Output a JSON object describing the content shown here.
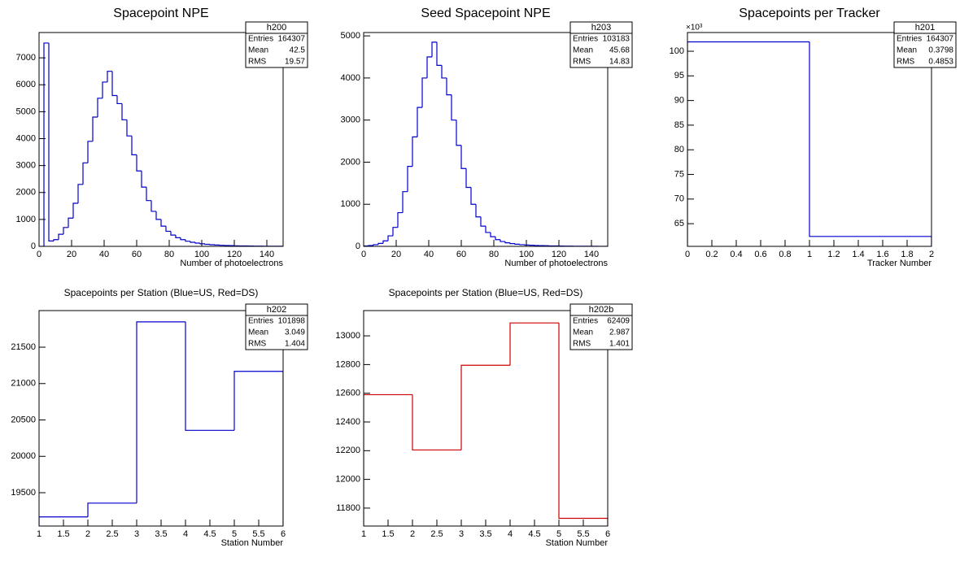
{
  "chart_data": [
    {
      "type": "histogram",
      "title": "Spacepoint NPE",
      "x_label": "Number of photoelectrons",
      "color": "#0000cc",
      "bins": [
        0,
        3,
        6,
        9,
        12,
        15,
        18,
        21,
        24,
        27,
        30,
        33,
        36,
        39,
        42,
        45,
        48,
        51,
        54,
        57,
        60,
        63,
        66,
        69,
        72,
        75,
        78,
        81,
        84,
        87,
        90,
        93,
        96,
        99,
        102,
        105,
        108,
        111,
        114,
        117,
        120,
        123,
        126,
        129,
        132,
        135,
        138,
        141,
        144,
        147,
        150
      ],
      "values": [
        0,
        7550,
        200,
        250,
        450,
        700,
        1050,
        1600,
        2300,
        3100,
        3900,
        4800,
        5500,
        6100,
        6500,
        5600,
        5300,
        4700,
        4100,
        3400,
        2800,
        2200,
        1700,
        1300,
        1000,
        750,
        560,
        420,
        320,
        250,
        190,
        150,
        120,
        95,
        75,
        60,
        50,
        40,
        32,
        26,
        21,
        17,
        14,
        11,
        9,
        7,
        6,
        5,
        4,
        3
      ],
      "xlim": [
        0,
        150
      ],
      "ylim": [
        0,
        7940
      ],
      "xticks": [
        0,
        20,
        40,
        60,
        80,
        100,
        120,
        140
      ],
      "yticks": [
        0,
        1000,
        2000,
        3000,
        4000,
        5000,
        6000,
        7000
      ],
      "stats": {
        "name": "h200",
        "rows": [
          {
            "label": "Entries",
            "value": 164307
          },
          {
            "label": "Mean",
            "value": 42.5
          },
          {
            "label": "RMS",
            "value": 19.57
          }
        ]
      }
    },
    {
      "type": "histogram",
      "title": "Seed Spacepoint NPE",
      "x_label": "Number of photoelectrons",
      "color": "#0000cc",
      "bins": [
        0,
        3,
        6,
        9,
        12,
        15,
        18,
        21,
        24,
        27,
        30,
        33,
        36,
        39,
        42,
        45,
        48,
        51,
        54,
        57,
        60,
        63,
        66,
        69,
        72,
        75,
        78,
        81,
        84,
        87,
        90,
        93,
        96,
        99,
        102,
        105,
        108,
        111,
        114,
        117,
        120,
        123,
        126,
        129,
        132,
        135,
        138,
        141,
        144,
        147,
        150
      ],
      "values": [
        10,
        20,
        40,
        70,
        130,
        250,
        450,
        800,
        1300,
        1900,
        2600,
        3300,
        4000,
        4500,
        4850,
        4300,
        4000,
        3600,
        3000,
        2400,
        1850,
        1400,
        1000,
        700,
        480,
        330,
        230,
        160,
        115,
        85,
        65,
        50,
        40,
        32,
        26,
        21,
        17,
        14,
        11,
        9,
        7,
        6,
        5,
        4,
        3,
        3,
        2,
        2,
        1,
        1
      ],
      "xlim": [
        0,
        150
      ],
      "ylim": [
        0,
        5080
      ],
      "xticks": [
        0,
        20,
        40,
        60,
        80,
        100,
        120,
        140
      ],
      "yticks": [
        0,
        1000,
        2000,
        3000,
        4000,
        5000
      ],
      "stats": {
        "name": "h203",
        "rows": [
          {
            "label": "Entries",
            "value": 103183
          },
          {
            "label": "Mean",
            "value": 45.68
          },
          {
            "label": "RMS",
            "value": 14.83
          }
        ]
      }
    },
    {
      "type": "histogram",
      "title": "Spacepoints per Tracker",
      "x_label": "Tracker Number",
      "y_exponent": "×10³",
      "color": "#0000cc",
      "bins": [
        0,
        1,
        2
      ],
      "values": [
        101.898,
        62.409
      ],
      "xlim": [
        0,
        2
      ],
      "ylim": [
        60.4,
        103.8
      ],
      "xticks": [
        0,
        0.2,
        0.4,
        0.6,
        0.8,
        1,
        1.2,
        1.4,
        1.6,
        1.8,
        2
      ],
      "yticks": [
        65,
        70,
        75,
        80,
        85,
        90,
        95,
        100
      ],
      "stats": {
        "name": "h201",
        "rows": [
          {
            "label": "Entries",
            "value": 164307
          },
          {
            "label": "Mean",
            "value": 0.3798
          },
          {
            "label": "RMS",
            "value": 0.4853
          }
        ]
      }
    },
    {
      "type": "histogram",
      "title": "Spacepoints per Station (Blue=US, Red=DS)",
      "x_label": "Station Number",
      "color": "#0000cc",
      "bins": [
        1,
        2,
        3,
        4,
        5,
        6
      ],
      "values": [
        19168,
        19357,
        21848,
        20357,
        21168
      ],
      "xlim": [
        1,
        6
      ],
      "ylim": [
        19042,
        22003
      ],
      "xticks": [
        1,
        1.5,
        2,
        2.5,
        3,
        3.5,
        4,
        4.5,
        5,
        5.5,
        6
      ],
      "yticks": [
        19500,
        20000,
        20500,
        21000,
        21500
      ],
      "stats": {
        "name": "h202",
        "rows": [
          {
            "label": "Entries",
            "value": 101898
          },
          {
            "label": "Mean",
            "value": 3.049
          },
          {
            "label": "RMS",
            "value": 1.404
          }
        ]
      }
    },
    {
      "type": "histogram",
      "title": "Spacepoints per Station (Blue=US, Red=DS)",
      "x_label": "Station Number",
      "color": "#cc0000",
      "bins": [
        1,
        2,
        3,
        4,
        5,
        6
      ],
      "values": [
        12590,
        12205,
        12795,
        13090,
        11729
      ],
      "xlim": [
        1,
        6
      ],
      "ylim": [
        11675,
        13176
      ],
      "xticks": [
        1,
        1.5,
        2,
        2.5,
        3,
        3.5,
        4,
        4.5,
        5,
        5.5,
        6
      ],
      "yticks": [
        11800,
        12000,
        12200,
        12400,
        12600,
        12800,
        13000
      ],
      "stats": {
        "name": "h202b",
        "rows": [
          {
            "label": "Entries",
            "value": 62409
          },
          {
            "label": "Mean",
            "value": 2.987
          },
          {
            "label": "RMS",
            "value": 1.401
          }
        ]
      }
    }
  ]
}
